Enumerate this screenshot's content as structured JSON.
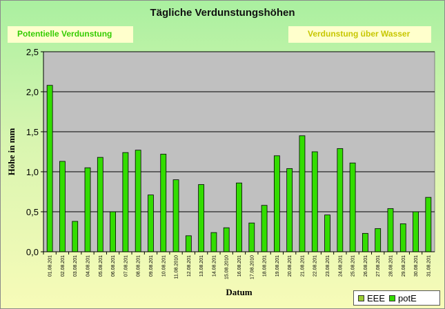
{
  "title": "Tägliche Verdunstungshöhen",
  "boxes": {
    "left_label": "Potentielle Verdunstung",
    "right_label": "Verdunstung über Wasser"
  },
  "legend": [
    {
      "name": "EEE",
      "color": "#9acd32"
    },
    {
      "name": "potE",
      "color": "#33dd00"
    }
  ],
  "colors": {
    "bar": "#33dd00",
    "plot_bg": "#c0c0c0"
  },
  "chart_data": {
    "type": "bar",
    "title": "Tägliche Verdunstungshöhen",
    "xlabel": "Datum",
    "ylabel": "Höhe in mm",
    "ylim": [
      0,
      2.5
    ],
    "yticks": [
      "0,0",
      "0,5",
      "1,0",
      "1,5",
      "2,0",
      "2,5"
    ],
    "grid": true,
    "legend_position": "bottom-right",
    "categories": [
      "01.08.201",
      "02.08.201",
      "03.08.201",
      "04.08.201",
      "05.08.201",
      "06.08.201",
      "07.08.201",
      "08.08.201",
      "09.08.201",
      "10.08.201",
      "11.08.2010",
      "12.08.201",
      "13.08.201",
      "14.08.201",
      "15.08.2010",
      "16.08.201",
      "17.08.2010",
      "18.08.201",
      "19.08.201",
      "20.08.201",
      "21.08.201",
      "22.08.201",
      "23.08.201",
      "24.08.201",
      "25.08.201",
      "26.08.201",
      "27.08.201",
      "28.08.201",
      "29.08.201",
      "30.08.201",
      "31.08.201"
    ],
    "series": [
      {
        "name": "potE",
        "values": [
          2.08,
          1.13,
          0.38,
          1.05,
          1.18,
          0.5,
          1.24,
          1.27,
          0.71,
          1.22,
          0.9,
          0.2,
          0.84,
          0.24,
          0.3,
          0.86,
          0.36,
          0.58,
          1.2,
          1.04,
          1.45,
          1.25,
          0.46,
          1.29,
          1.11,
          0.23,
          0.29,
          0.54,
          0.35,
          0.5,
          0.68
        ]
      }
    ]
  }
}
